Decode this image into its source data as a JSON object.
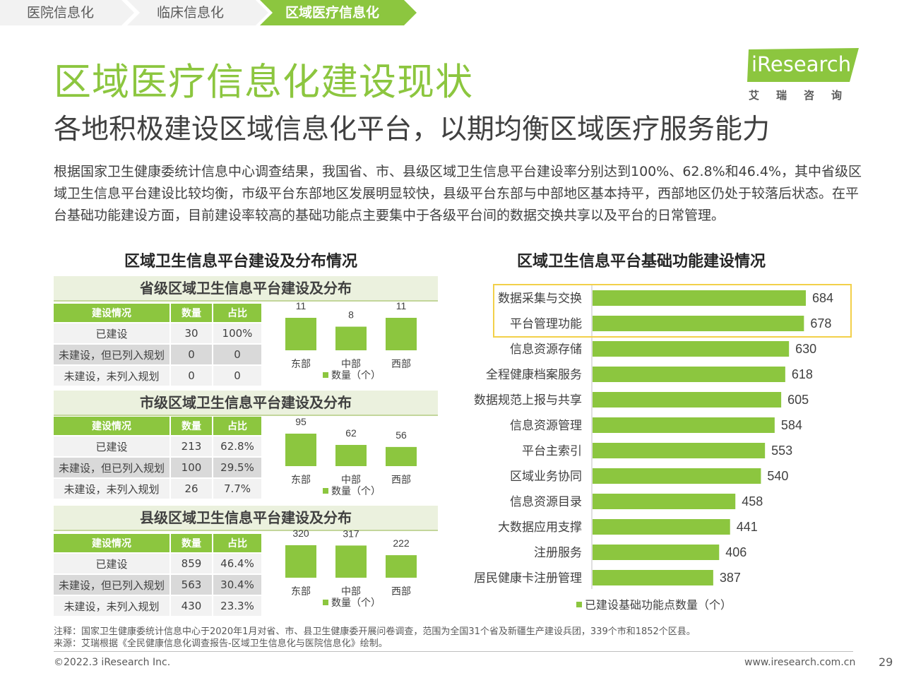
{
  "breadcrumb": [
    "医院信息化",
    "临床信息化",
    "区域医疗信息化"
  ],
  "title": "区域医疗信息化建设现状",
  "subtitle": "各地积极建设区域信息化平台，以期均衡区域医疗服务能力",
  "logo": {
    "brand": "iResearch",
    "cn": "艾瑞咨询"
  },
  "intro": "根据国家卫生健康委统计信息中心调查结果，我国省、市、县级区域卫生信息平台建设率分别达到100%、62.8%和46.4%，其中省级区域卫生信息平台建设比较均衡，市级平台东部地区发展明显较快，县级平台东部与中部地区基本持平，西部地区仍处于较落后状态。在平台基础功能建设方面，目前建设率较高的基础功能点主要集中于各级平台间的数据交换共享以及平台的日常管理。",
  "left_section_title": "区域卫生信息平台建设及分布情况",
  "right_section_title": "区域卫生信息平台基础功能建设情况",
  "table_headers": [
    "建设情况",
    "数量",
    "占比"
  ],
  "panels": [
    {
      "title": "省级区域卫生信息平台建设及分布",
      "rows": [
        [
          "已建设",
          "30",
          "100%"
        ],
        [
          "未建设，但已列入规划",
          "0",
          "0"
        ],
        [
          "未建设，未列入规划",
          "0",
          "0"
        ]
      ]
    },
    {
      "title": "市级区域卫生信息平台建设及分布",
      "rows": [
        [
          "已建设",
          "213",
          "62.8%"
        ],
        [
          "未建设，但已列入规划",
          "100",
          "29.5%"
        ],
        [
          "未建设，未列入规划",
          "26",
          "7.7%"
        ]
      ]
    },
    {
      "title": "县级区域卫生信息平台建设及分布",
      "rows": [
        [
          "已建设",
          "859",
          "46.4%"
        ],
        [
          "未建设，但已列入规划",
          "563",
          "30.4%"
        ],
        [
          "未建设，未列入规划",
          "430",
          "23.3%"
        ]
      ]
    }
  ],
  "colors": {
    "accent": "#8cc63f",
    "highlight": "#f2d04a"
  },
  "chart_data": [
    {
      "type": "bar",
      "categories": [
        "东部",
        "中部",
        "西部"
      ],
      "series": [
        {
          "name": "数量（个）",
          "values": [
            11,
            8,
            11
          ]
        }
      ]
    },
    {
      "type": "bar",
      "categories": [
        "东部",
        "中部",
        "西部"
      ],
      "series": [
        {
          "name": "数量（个）",
          "values": [
            95,
            62,
            56
          ]
        }
      ]
    },
    {
      "type": "bar",
      "categories": [
        "东部",
        "中部",
        "西部"
      ],
      "series": [
        {
          "name": "数量（个）",
          "values": [
            320,
            317,
            222
          ]
        }
      ]
    },
    {
      "type": "bar",
      "orientation": "horizontal",
      "categories": [
        "数据采集与交换",
        "平台管理功能",
        "信息资源存储",
        "全程健康档案服务",
        "数据规范上报与共享",
        "信息资源管理",
        "平台主索引",
        "区域业务协同",
        "信息资源目录",
        "大数据应用支撑",
        "注册服务",
        "居民健康卡注册管理"
      ],
      "series": [
        {
          "name": "已建设基础功能点数量（个）",
          "values": [
            684,
            678,
            630,
            618,
            605,
            584,
            553,
            540,
            458,
            441,
            406,
            387
          ]
        }
      ],
      "highlighted": [
        "数据采集与交换",
        "平台管理功能"
      ]
    }
  ],
  "footnote_1": "注释：国家卫生健康委统计信息中心于2020年1月对省、市、县卫生健康委开展问卷调查，范围为全国31个省及新疆生产建设兵团，339个市和1852个区县。",
  "footnote_2": "来源：艾瑞根据《全民健康信息化调查报告-区域卫生信息化与医院信息化》绘制。",
  "copyright": "©2022.3 iResearch Inc.",
  "website": "www.iresearch.com.cn",
  "page_number": "29"
}
